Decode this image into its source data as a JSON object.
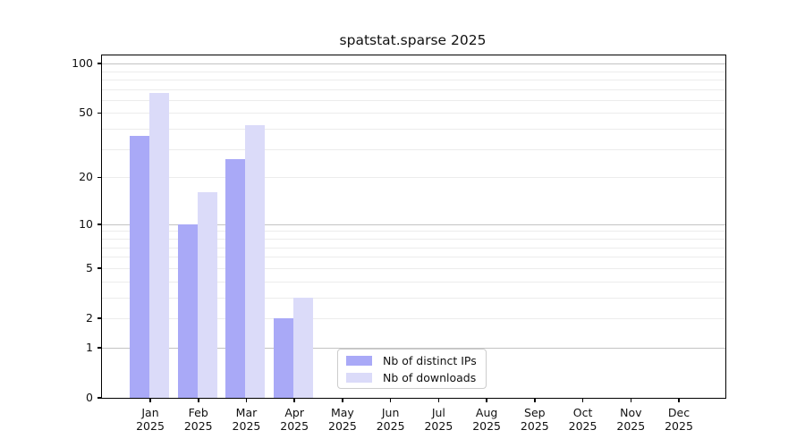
{
  "title": "spatstat.sparse 2025",
  "chart_data": {
    "type": "bar",
    "title": "spatstat.sparse 2025",
    "y_scale": "log10(1+x)",
    "categories": [
      "Jan 2025",
      "Feb 2025",
      "Mar 2025",
      "Apr 2025",
      "May 2025",
      "Jun 2025",
      "Jul 2025",
      "Aug 2025",
      "Sep 2025",
      "Oct 2025",
      "Nov 2025",
      "Dec 2025"
    ],
    "series": [
      {
        "name": "Nb of distinct IPs",
        "color": "#a9a9f7",
        "values": [
          36,
          10,
          26,
          2,
          null,
          null,
          null,
          null,
          null,
          null,
          null,
          null
        ]
      },
      {
        "name": "Nb of downloads",
        "color": "#dbdbf9",
        "values": [
          66,
          16,
          42,
          3,
          null,
          null,
          null,
          null,
          null,
          null,
          null,
          null
        ]
      }
    ],
    "yticks": [
      0,
      1,
      2,
      5,
      10,
      20,
      50,
      100
    ],
    "ylim": [
      0,
      112
    ],
    "xlabel": "",
    "ylabel": "",
    "grid": "horizontal",
    "legend_position": "lower-center-inside"
  },
  "colors": {
    "major_grid": "#c3c3c3",
    "minor_grid": "#ececec",
    "axis": "#000000",
    "legend_border": "#cccccc"
  }
}
